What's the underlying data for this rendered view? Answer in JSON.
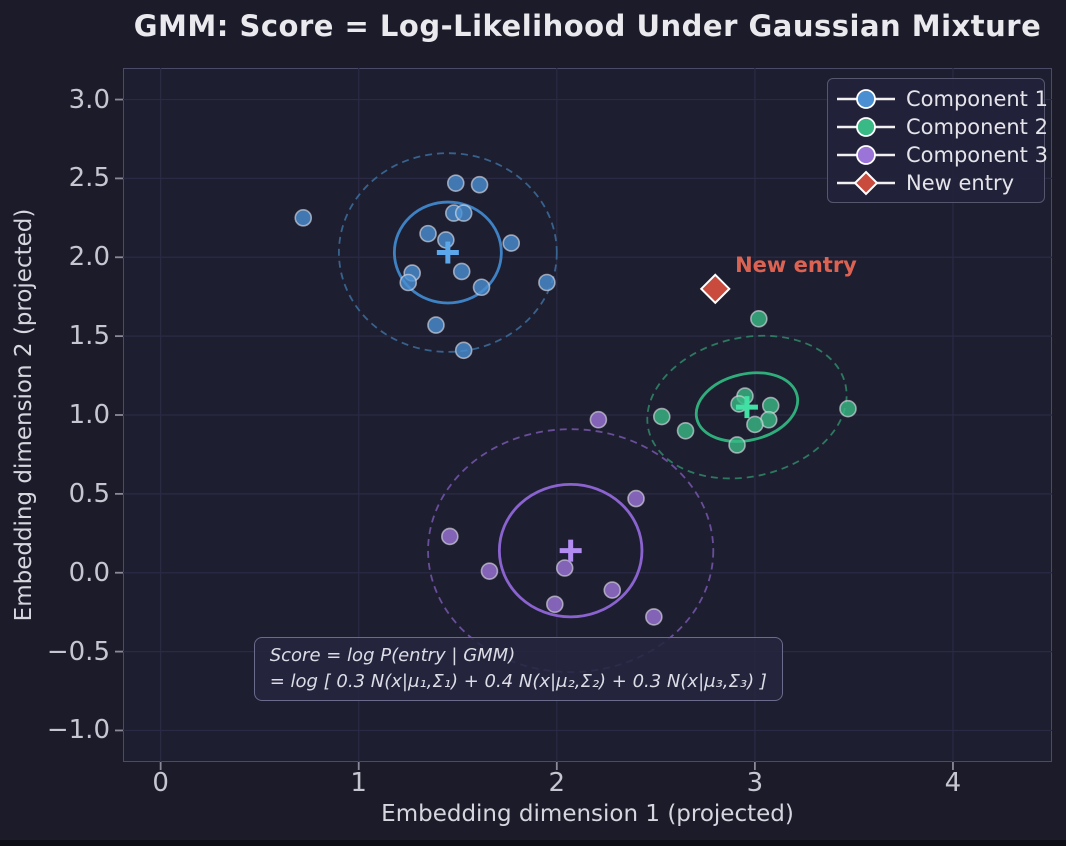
{
  "title": "GMM: Score = Log-Likelihood Under Gaussian Mixture",
  "chart_data": {
    "type": "scatter",
    "title": "GMM: Score = Log-Likelihood Under Gaussian Mixture",
    "xlabel": "Embedding dimension 1 (projected)",
    "ylabel": "Embedding dimension 2 (projected)",
    "xlim": [
      -0.19,
      4.5
    ],
    "ylim": [
      -1.2,
      3.2
    ],
    "x_ticks": [
      0,
      1,
      2,
      3,
      4
    ],
    "x_tick_labels": [
      "0",
      "1",
      "2",
      "3",
      "4"
    ],
    "y_ticks": [
      -1.0,
      -0.5,
      0.0,
      0.5,
      1.0,
      1.5,
      2.0,
      2.5,
      3.0
    ],
    "y_tick_labels": [
      "−1.0",
      "−0.5",
      "0.0",
      "0.5",
      "1.0",
      "1.5",
      "2.0",
      "2.5",
      "3.0"
    ],
    "grid": true,
    "legend_position": "upper right",
    "mixture_weights": [
      0.3,
      0.4,
      0.3
    ],
    "series": [
      {
        "name": "Component 1",
        "marker": "circle",
        "color": "#4a8fd2",
        "cross_color": "#5ca6ea",
        "ellipse_color": "#3e82c4",
        "ellipse_dashed_color": "#3c6f9e",
        "mean": [
          1.45,
          2.03
        ],
        "ellipse_1sigma": {
          "rx": 0.27,
          "ry": 0.32,
          "angle": 0
        },
        "ellipse_2sigma": {
          "rx": 0.55,
          "ry": 0.63,
          "angle": 0
        },
        "points": [
          [
            1.49,
            2.47
          ],
          [
            1.61,
            2.46
          ],
          [
            1.48,
            2.28
          ],
          [
            1.53,
            2.28
          ],
          [
            1.35,
            2.15
          ],
          [
            1.44,
            2.11
          ],
          [
            0.72,
            2.25
          ],
          [
            1.77,
            2.09
          ],
          [
            1.52,
            1.91
          ],
          [
            1.27,
            1.9
          ],
          [
            1.25,
            1.84
          ],
          [
            1.62,
            1.81
          ],
          [
            1.95,
            1.84
          ],
          [
            1.39,
            1.57
          ],
          [
            1.53,
            1.41
          ]
        ]
      },
      {
        "name": "Component 2",
        "marker": "circle",
        "color": "#38b986",
        "cross_color": "#41e0a4",
        "ellipse_color": "#2fae7c",
        "ellipse_dashed_color": "#2f8a68",
        "mean": [
          2.96,
          1.05
        ],
        "ellipse_1sigma": {
          "rx": 0.26,
          "ry": 0.21,
          "angle": -13
        },
        "ellipse_2sigma": {
          "rx": 0.51,
          "ry": 0.44,
          "angle": -13
        },
        "points": [
          [
            3.02,
            1.61
          ],
          [
            2.95,
            1.12
          ],
          [
            2.92,
            1.07
          ],
          [
            3.08,
            1.06
          ],
          [
            2.53,
            0.99
          ],
          [
            3.47,
            1.04
          ],
          [
            2.65,
            0.9
          ],
          [
            3.07,
            0.97
          ],
          [
            3.0,
            0.94
          ],
          [
            2.91,
            0.81
          ]
        ]
      },
      {
        "name": "Component 3",
        "marker": "circle",
        "color": "#9b74d8",
        "cross_color": "#b28cf0",
        "ellipse_color": "#8a63cf",
        "ellipse_dashed_color": "#7757ad",
        "mean": [
          2.07,
          0.14
        ],
        "ellipse_1sigma": {
          "rx": 0.36,
          "ry": 0.42,
          "angle": 0
        },
        "ellipse_2sigma": {
          "rx": 0.72,
          "ry": 0.77,
          "angle": 0
        },
        "points": [
          [
            2.21,
            0.97
          ],
          [
            2.4,
            0.47
          ],
          [
            1.46,
            0.23
          ],
          [
            1.66,
            0.01
          ],
          [
            2.04,
            0.03
          ],
          [
            2.28,
            -0.11
          ],
          [
            1.99,
            -0.2
          ],
          [
            2.49,
            -0.28
          ]
        ]
      },
      {
        "name": "New entry",
        "marker": "diamond",
        "color": "#c94b3d",
        "points": [
          [
            2.8,
            1.8
          ]
        ]
      }
    ],
    "annotations": [
      {
        "id": "new_entry_label",
        "text": "New entry",
        "x": 2.9,
        "y": 1.95,
        "color": "#dc6352"
      },
      {
        "id": "score_formula",
        "line1": "Score = log P(entry | GMM)",
        "line2": "= log [ 0.3 N(x|μ₁,Σ₁) + 0.4 N(x|μ₂,Σ₂) + 0.3 N(x|μ₃,Σ₃) ]",
        "x": 0.47,
        "y": -0.405
      }
    ]
  },
  "colors": {
    "figure_bg": "#1b1b2a",
    "axes_bg": "#1e1e31",
    "grid": "#2a2a44",
    "spine": "#4b4b68",
    "tick_mark": "#8a8a98",
    "tick_text": "#c6c6d0",
    "label_text": "#d6d6de",
    "title_text": "#eaeaee",
    "legend_bg": "#22223a",
    "legend_border": "#56566e",
    "legend_line": "#f0f0f0",
    "marker_edge": "#d8d8e0",
    "annotation_bg": "#26263f",
    "annotation_border": "#6b6b8c",
    "new_entry_text": "#dc6352"
  }
}
